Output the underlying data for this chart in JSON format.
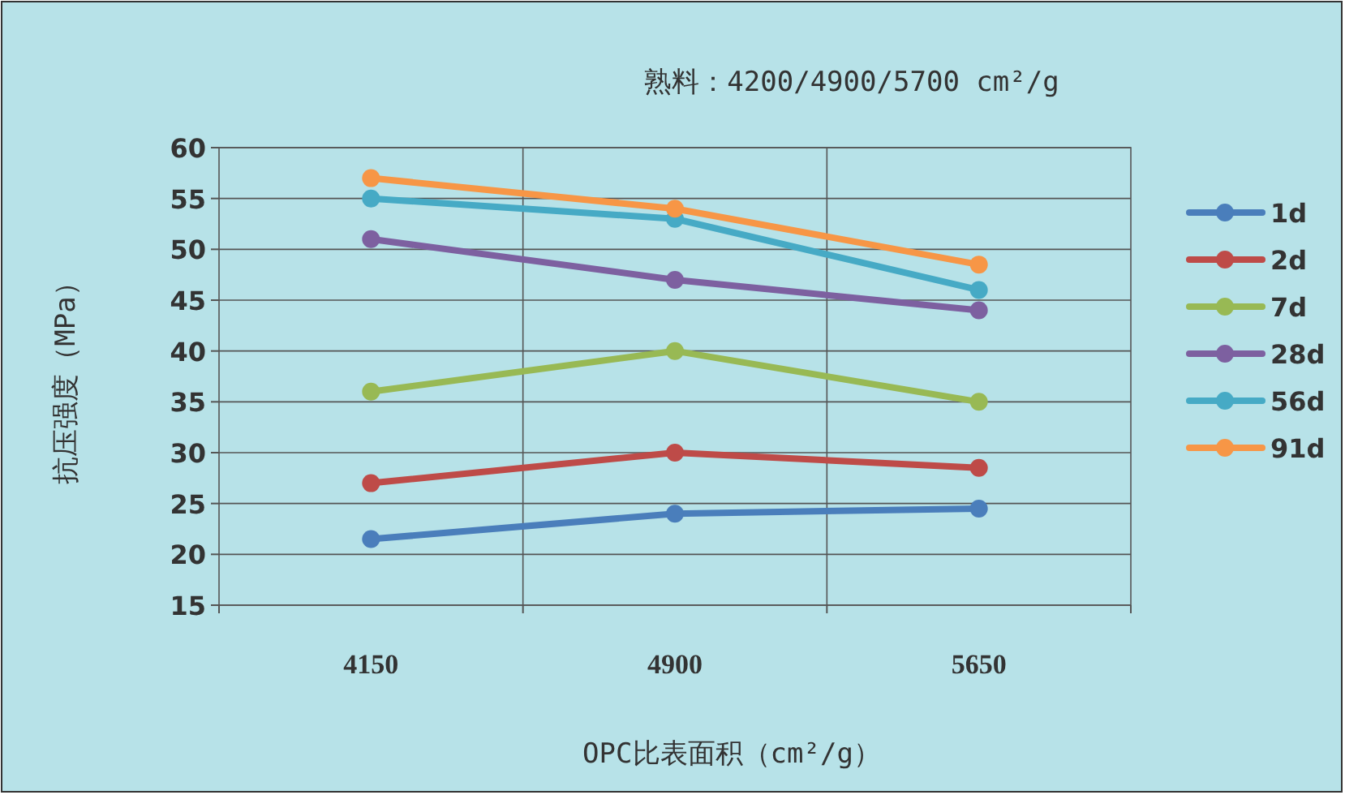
{
  "chart_data": {
    "type": "line",
    "title": "熟料：4200/4900/5700 cm²/g",
    "xlabel": "OPC比表面积（cm²/g）",
    "ylabel": "抗压强度（MPa）",
    "categories": [
      "4150",
      "4900",
      "5650"
    ],
    "series": [
      {
        "name": "1d",
        "color": "#4a7ebb",
        "values": [
          21.5,
          24,
          24.5
        ]
      },
      {
        "name": "2d",
        "color": "#be4b48",
        "values": [
          27,
          30,
          28.5
        ]
      },
      {
        "name": "7d",
        "color": "#98b954",
        "values": [
          36,
          40,
          35
        ]
      },
      {
        "name": "28d",
        "color": "#7d60a0",
        "values": [
          51,
          47,
          44
        ]
      },
      {
        "name": "56d",
        "color": "#46aac5",
        "values": [
          55,
          53,
          46
        ]
      },
      {
        "name": "91d",
        "color": "#f79646",
        "values": [
          57,
          54,
          48.5
        ]
      }
    ],
    "ylim": [
      15,
      60
    ],
    "yticks": [
      15,
      20,
      25,
      30,
      35,
      40,
      45,
      50,
      55,
      60
    ],
    "grid": true,
    "legend": "right",
    "marker": "circle",
    "line_style": "solid"
  }
}
